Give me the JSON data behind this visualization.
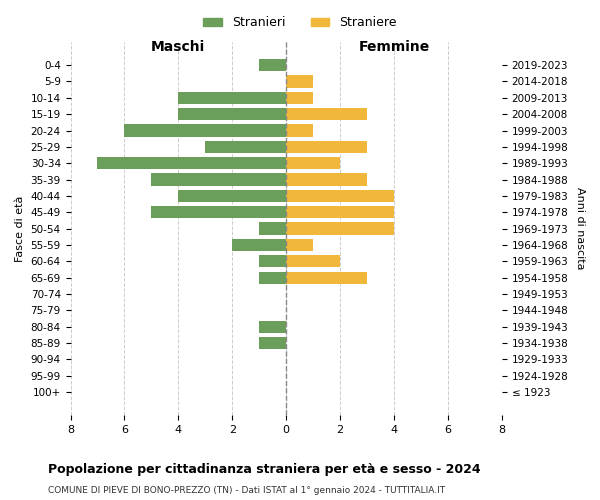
{
  "age_groups": [
    "100+",
    "95-99",
    "90-94",
    "85-89",
    "80-84",
    "75-79",
    "70-74",
    "65-69",
    "60-64",
    "55-59",
    "50-54",
    "45-49",
    "40-44",
    "35-39",
    "30-34",
    "25-29",
    "20-24",
    "15-19",
    "10-14",
    "5-9",
    "0-4"
  ],
  "birth_years": [
    "≤ 1923",
    "1924-1928",
    "1929-1933",
    "1934-1938",
    "1939-1943",
    "1944-1948",
    "1949-1953",
    "1954-1958",
    "1959-1963",
    "1964-1968",
    "1969-1973",
    "1974-1978",
    "1979-1983",
    "1984-1988",
    "1989-1993",
    "1994-1998",
    "1999-2003",
    "2004-2008",
    "2009-2013",
    "2014-2018",
    "2019-2023"
  ],
  "males": [
    0,
    0,
    0,
    1,
    1,
    0,
    0,
    1,
    1,
    2,
    1,
    5,
    4,
    5,
    7,
    3,
    6,
    4,
    4,
    0,
    1
  ],
  "females": [
    0,
    0,
    0,
    0,
    0,
    0,
    0,
    3,
    2,
    1,
    4,
    4,
    4,
    3,
    2,
    3,
    1,
    3,
    1,
    1,
    0
  ],
  "male_color": "#6a9e5a",
  "female_color": "#f0b73a",
  "background_color": "#ffffff",
  "grid_color": "#cccccc",
  "title": "Popolazione per cittadinanza straniera per età e sesso - 2024",
  "subtitle": "COMUNE DI PIEVE DI BONO-PREZZO (TN) - Dati ISTAT al 1° gennaio 2024 - TUTTITALIA.IT",
  "xlabel_left": "Maschi",
  "xlabel_right": "Femmine",
  "ylabel_left": "Fasce di età",
  "ylabel_right": "Anni di nascita",
  "legend_male": "Stranieri",
  "legend_female": "Straniere",
  "xlim": 8,
  "xticks": [
    -8,
    -6,
    -4,
    -2,
    0,
    2,
    4,
    6,
    8
  ]
}
